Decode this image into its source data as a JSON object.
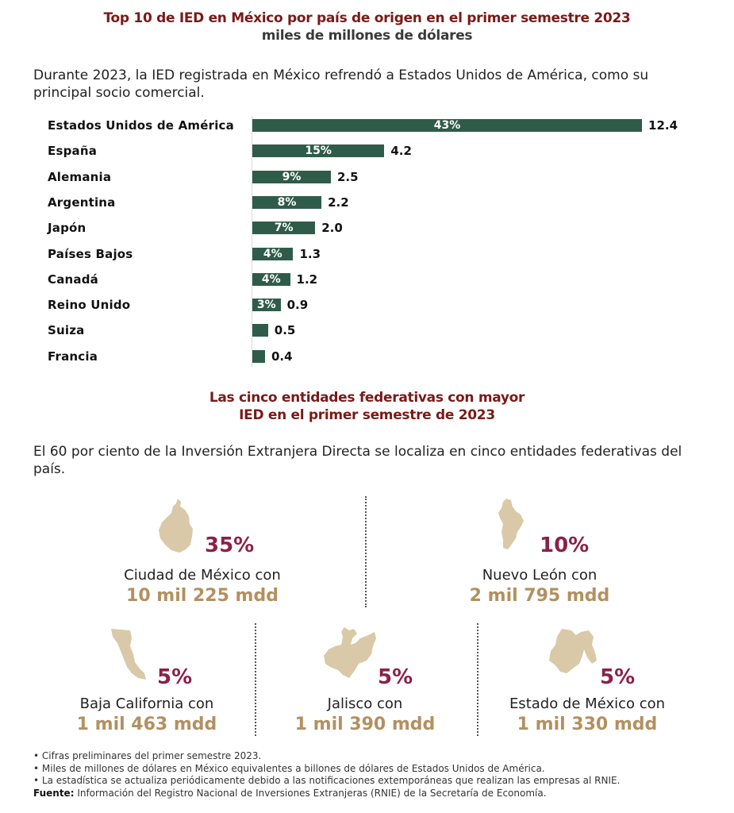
{
  "header": {
    "title": "Top 10 de IED en México por país de origen en el primer semestre 2023",
    "subtitle": "miles de millones de dólares",
    "intro": "Durante 2023, la IED registrada en México refrendó a Estados Unidos de América, como su principal socio comercial."
  },
  "chart_data": {
    "type": "bar",
    "orientation": "horizontal",
    "title": "Top 10 de IED en México por país de origen en el primer semestre 2023",
    "subtitle": "miles de millones de dólares",
    "xlabel": "",
    "ylabel": "",
    "grid": false,
    "categories": [
      "Estados Unidos de América",
      "España",
      "Alemania",
      "Argentina",
      "Japón",
      "Países Bajos",
      "Canadá",
      "Reino Unido",
      "Suiza",
      "Francia"
    ],
    "values": [
      12.4,
      4.2,
      2.5,
      2.2,
      2.0,
      1.3,
      1.2,
      0.9,
      0.5,
      0.4
    ],
    "bar_labels": [
      "43%",
      "15%",
      "9%",
      "8%",
      "7%",
      "4%",
      "4%",
      "3%",
      "",
      ""
    ],
    "value_labels": [
      "12.4",
      "4.2",
      "2.5",
      "2.2",
      "2.0",
      "1.3",
      "1.2",
      "0.9",
      "0.5",
      "0.4"
    ],
    "bar_color": "#2f5c4a"
  },
  "states_section": {
    "title_line1": "Las cinco entidades federativas con mayor",
    "title_line2": "IED en el primer semestre de 2023",
    "intro": "El 60 por ciento de la Inversión Extranjera Directa se localiza en cinco entidades federativas del país.",
    "states": [
      {
        "name": "Ciudad de México con",
        "pct": "35%",
        "amount": "10 mil 225 mdd",
        "icon": "cdmx-map-icon"
      },
      {
        "name": "Nuevo León con",
        "pct": "10%",
        "amount": "2 mil 795 mdd",
        "icon": "nuevo-leon-map-icon"
      },
      {
        "name": "Baja California con",
        "pct": "5%",
        "amount": "1 mil 463 mdd",
        "icon": "baja-california-map-icon"
      },
      {
        "name": "Jalisco con",
        "pct": "5%",
        "amount": "1 mil 390 mdd",
        "icon": "jalisco-map-icon"
      },
      {
        "name": "Estado de México con",
        "pct": "5%",
        "amount": "1 mil 330 mdd",
        "icon": "estado-de-mexico-map-icon"
      }
    ],
    "colors": {
      "pct": "#8c2148",
      "amount": "#b39060",
      "shape": "#d9c9a8"
    }
  },
  "footer": {
    "notes": [
      "• Cifras preliminares del primer semestre 2023.",
      "• Miles de millones de dólares en México equivalentes a billones de dólares de Estados Unidos de América.",
      "• La estadística se actualiza periódicamente debido a las notificaciones extemporáneas que realizan las empresas al RNIE."
    ],
    "source_label": "Fuente:",
    "source_text": " Información del Registro Nacional de Inversiones Extranjeras (RNIE) de la Secretaría de Economía."
  }
}
